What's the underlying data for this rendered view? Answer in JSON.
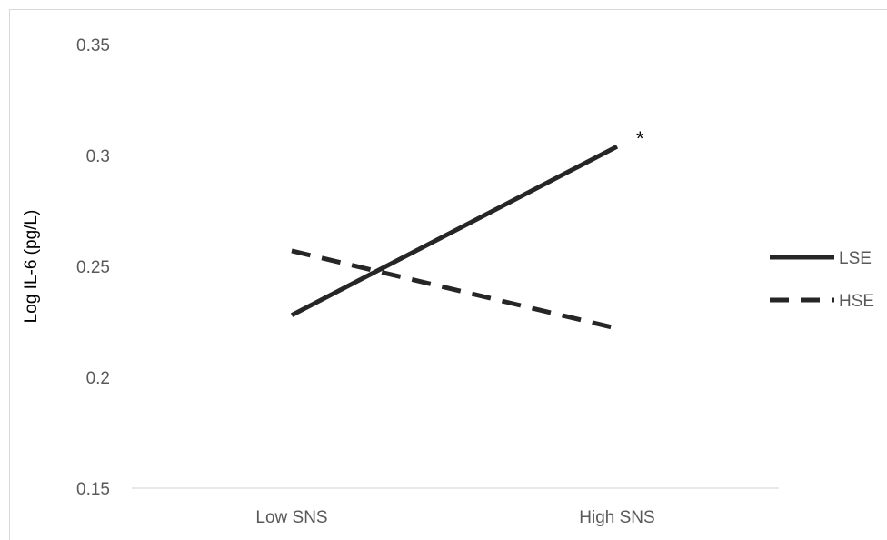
{
  "chart_data": {
    "type": "line",
    "title": "",
    "xlabel": "",
    "ylabel": "Log IL-6 (pg/L)",
    "categories": [
      "Low SNS",
      "High SNS"
    ],
    "yticks": [
      "0.15",
      "0.2",
      "0.25",
      "0.3",
      "0.35"
    ],
    "ylim": [
      0.15,
      0.35
    ],
    "grid": false,
    "legend_position": "right",
    "series": [
      {
        "name": "LSE",
        "values": [
          0.228,
          0.304
        ],
        "line_style": "solid",
        "color": "#262626"
      },
      {
        "name": "HSE",
        "values": [
          0.257,
          0.222
        ],
        "line_style": "dashed",
        "color": "#262626"
      }
    ],
    "annotations": [
      {
        "text": "*",
        "series": "LSE",
        "category": "High SNS"
      }
    ]
  }
}
